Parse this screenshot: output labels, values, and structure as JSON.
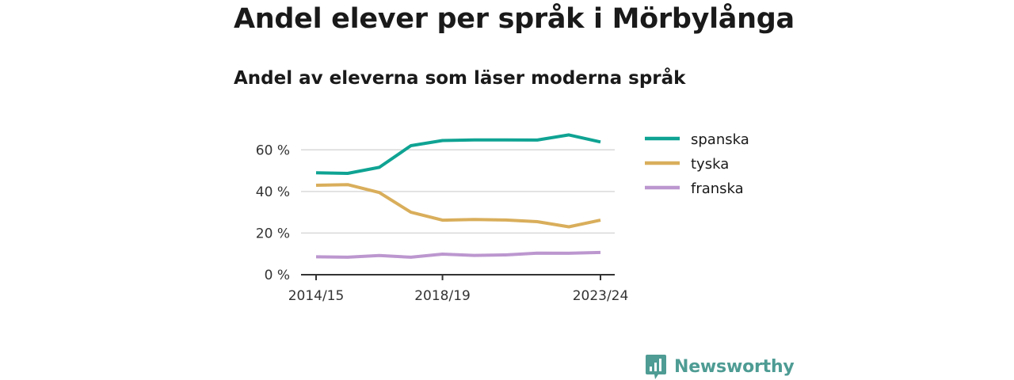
{
  "title": "Andel elever per språk i Mörbylånga",
  "subtitle": "Andel av eleverna som läser moderna språk",
  "chart_data": {
    "type": "line",
    "title": "Andel elever per språk i Mörbylånga",
    "subtitle": "Andel av eleverna som läser moderna språk",
    "x": [
      "2014/15",
      "2015/16",
      "2016/17",
      "2017/18",
      "2018/19",
      "2019/20",
      "2020/21",
      "2021/22",
      "2022/23",
      "2023/24"
    ],
    "x_tick_labels": [
      "2014/15",
      "2018/19",
      "2023/24"
    ],
    "y_ticks": [
      0,
      20,
      40,
      60
    ],
    "y_tick_labels": [
      "0 %",
      "20 %",
      "40 %",
      "60 %"
    ],
    "ylim": [
      0,
      70
    ],
    "grid": true,
    "legend_position": "right",
    "series": [
      {
        "name": "spanska",
        "color": "#0fa393",
        "values": [
          49,
          48.7,
          51.6,
          62,
          64.5,
          64.8,
          64.8,
          64.7,
          67.2,
          63.8
        ]
      },
      {
        "name": "tyska",
        "color": "#d9ae5b",
        "values": [
          43,
          43.3,
          39.5,
          30,
          26.2,
          26.5,
          26.3,
          25.5,
          23,
          26.2
        ]
      },
      {
        "name": "franska",
        "color": "#bc97cf",
        "values": [
          8.6,
          8.4,
          9.2,
          8.4,
          9.9,
          9.3,
          9.5,
          10.4,
          10.3,
          10.7
        ]
      }
    ]
  },
  "brand": {
    "name": "Newsworthy",
    "logo_icon": "bar-chart-speech-bubble-icon",
    "color": "#4e9c94"
  }
}
